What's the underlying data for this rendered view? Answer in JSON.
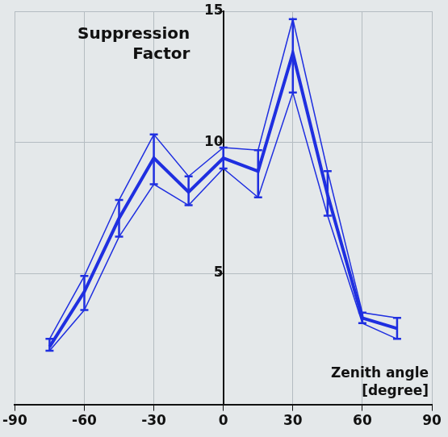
{
  "chart_data": {
    "type": "line",
    "y_label": "Suppression Factor",
    "x_label": "Zenith angle [degree]",
    "x": [
      -75,
      -60,
      -45,
      -30,
      -15,
      0,
      15,
      30,
      45,
      60,
      75
    ],
    "values": [
      2.2,
      4.3,
      7.1,
      9.4,
      8.1,
      9.4,
      8.9,
      13.4,
      8.0,
      3.3,
      2.9
    ],
    "error_upper": [
      2.5,
      4.9,
      7.8,
      10.3,
      8.7,
      9.8,
      9.7,
      14.7,
      8.9,
      3.5,
      3.3
    ],
    "error_lower": [
      2.05,
      3.6,
      6.4,
      8.4,
      7.6,
      9.0,
      7.9,
      11.9,
      7.2,
      3.1,
      2.5
    ],
    "color": "#1f2fe0",
    "xlim": [
      -90,
      90
    ],
    "xticks": [
      -90,
      -60,
      -30,
      0,
      30,
      60,
      90
    ],
    "ylim": [
      0,
      15
    ],
    "yticks": [
      5,
      10,
      15
    ],
    "grid": true
  }
}
